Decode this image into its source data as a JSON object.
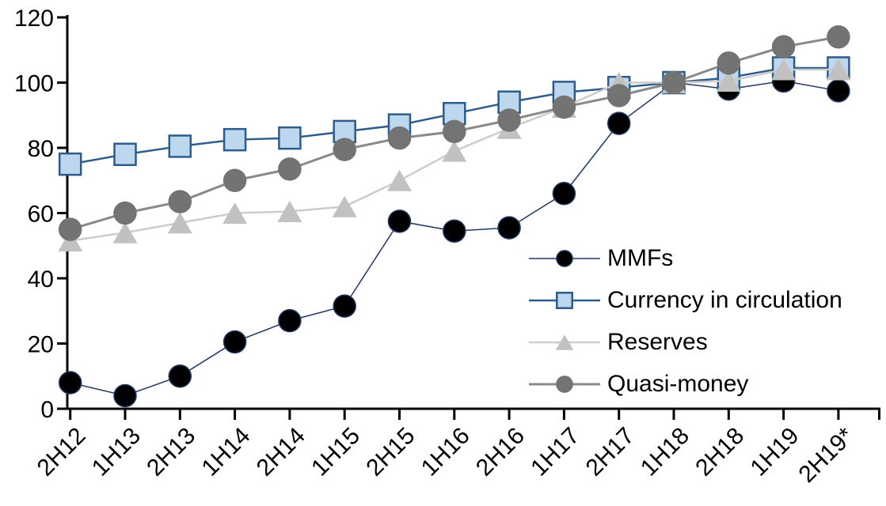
{
  "chart_data": {
    "type": "line",
    "title": "",
    "xlabel": "",
    "ylabel": "",
    "categories": [
      "2H12",
      "1H13",
      "2H13",
      "1H14",
      "2H14",
      "1H15",
      "2H15",
      "1H16",
      "2H16",
      "1H17",
      "2H17",
      "1H18",
      "2H18",
      "1H19",
      "2H19*"
    ],
    "series": [
      {
        "name": "MMFs",
        "marker": "circle",
        "marker_fill": "#000000",
        "marker_stroke": "#203864",
        "line_color": "#203864",
        "line_width": 1.5,
        "values": [
          8,
          4,
          10,
          20.5,
          27,
          31.5,
          57.5,
          54.5,
          55.5,
          66,
          87.5,
          100,
          98,
          100.5,
          97.5
        ]
      },
      {
        "name": "Currency in circulation",
        "marker": "square",
        "marker_fill": "#bdd7ee",
        "marker_stroke": "#2e5c8a",
        "line_color": "#2e5c8a",
        "line_width": 2.5,
        "values": [
          75,
          78,
          80.5,
          82.5,
          83,
          85,
          87,
          90.5,
          94,
          97,
          98.5,
          100,
          101.5,
          104.5,
          104.5
        ]
      },
      {
        "name": "Reserves",
        "marker": "triangle",
        "marker_fill": "#c1c1c1",
        "marker_stroke": "#c1c1c1",
        "line_color": "#cccccc",
        "line_width": 2.5,
        "values": [
          51.5,
          54,
          57,
          60,
          60.5,
          62,
          70,
          79,
          86,
          92.5,
          100,
          100,
          100.5,
          104,
          104
        ]
      },
      {
        "name": "Quasi-money",
        "marker": "circle",
        "marker_fill": "#737373",
        "marker_stroke": "#737373",
        "line_color": "#898989",
        "line_width": 3,
        "values": [
          55,
          60,
          63.5,
          70,
          73.5,
          79.5,
          83,
          85,
          88.5,
          92.5,
          96,
          100,
          106,
          111,
          114
        ]
      }
    ],
    "ylim": [
      0,
      120
    ],
    "yticks": [
      0,
      20,
      40,
      60,
      80,
      100,
      120
    ],
    "x_tick_label_rotation": -45,
    "grid": false,
    "legend_position": "inside-right",
    "axis_color": "#000000",
    "text_color": "#000000",
    "background_color": "#ffffff"
  }
}
